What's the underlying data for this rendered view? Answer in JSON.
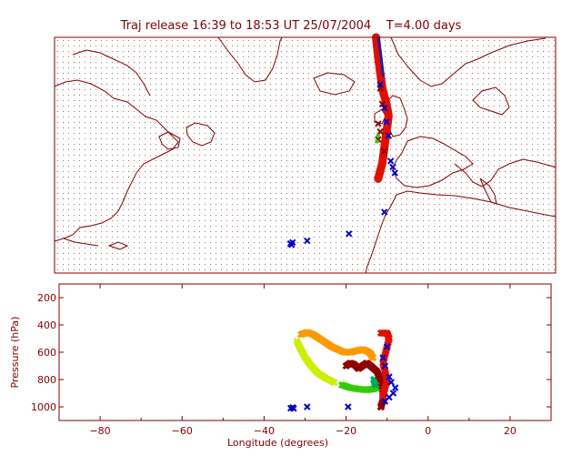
{
  "title": "Traj release 16:39 to 18:53 UT 25/07/2004    T=4.00 days",
  "colors": {
    "frame": "#800000",
    "coast": "#800000",
    "marker_blue": "#0000cc",
    "trajectory_red": "#e01000",
    "trajectory_dark": "#900000",
    "trajectory_orange": "#ff9900",
    "trajectory_yellow": "#ccee00",
    "trajectory_green": "#33cc00",
    "trajectory_teal": "#00aa55"
  },
  "chart_data": [
    {
      "type": "scatter",
      "name": "trajectory-map",
      "description_visible": "map of North Atlantic with trajectories",
      "xlim": [
        -90,
        30
      ],
      "ylim": [
        15,
        75
      ],
      "grid": "dotted",
      "blue_markers": [
        {
          "lon": -33.5,
          "lat": 22.5
        },
        {
          "lon": -33.0,
          "lat": 22.8
        },
        {
          "lon": -33.2,
          "lat": 22.2
        },
        {
          "lon": -29.5,
          "lat": 23.2
        },
        {
          "lon": -19.5,
          "lat": 25.0
        },
        {
          "lon": -11.0,
          "lat": 30.5
        },
        {
          "lon": -8.5,
          "lat": 40.5
        },
        {
          "lon": -9.0,
          "lat": 42.0
        },
        {
          "lon": -9.5,
          "lat": 43.5
        },
        {
          "lon": -10.0,
          "lat": 50.0
        },
        {
          "lon": -10.5,
          "lat": 53.5
        },
        {
          "lon": -11.0,
          "lat": 57.0
        },
        {
          "lon": -12.0,
          "lat": 63.0
        }
      ],
      "red_path": [
        {
          "lon": -13.0,
          "lat": 75.0
        },
        {
          "lon": -12.5,
          "lat": 70.0
        },
        {
          "lon": -12.0,
          "lat": 66.0
        },
        {
          "lon": -11.5,
          "lat": 62.0
        },
        {
          "lon": -10.5,
          "lat": 58.0
        },
        {
          "lon": -10.0,
          "lat": 55.0
        },
        {
          "lon": -10.5,
          "lat": 51.0
        },
        {
          "lon": -11.0,
          "lat": 47.0
        },
        {
          "lon": -11.5,
          "lat": 43.0
        },
        {
          "lon": -12.5,
          "lat": 39.0
        }
      ],
      "dark_markers": [
        {
          "lon": -12.0,
          "lat": 62.0
        },
        {
          "lon": -11.5,
          "lat": 58.0
        },
        {
          "lon": -12.5,
          "lat": 53.0
        },
        {
          "lon": -12.0,
          "lat": 51.0
        },
        {
          "lon": -12.5,
          "lat": 49.0
        },
        {
          "lon": -11.0,
          "lat": 46.0
        }
      ],
      "green_markers": [
        {
          "lon": -12.5,
          "lat": 50.0
        },
        {
          "lon": -12.8,
          "lat": 48.5
        }
      ]
    },
    {
      "type": "scatter",
      "name": "pressure-vs-longitude",
      "xlabel": "Longitude  (degrees)",
      "ylabel": "Pressure  (hPa)",
      "xlim": [
        -90,
        30
      ],
      "ylim": [
        1100,
        100
      ],
      "x_ticks": [
        -80,
        -60,
        -40,
        -20,
        0,
        20
      ],
      "y_ticks": [
        200,
        400,
        600,
        800,
        1000
      ],
      "series": [
        {
          "color": "#ff9900",
          "points": [
            {
              "lon": -31.0,
              "p": 470
            },
            {
              "lon": -29.5,
              "p": 455
            },
            {
              "lon": -28.0,
              "p": 470
            },
            {
              "lon": -26.5,
              "p": 500
            },
            {
              "lon": -25.0,
              "p": 530
            },
            {
              "lon": -23.5,
              "p": 560
            },
            {
              "lon": -22.0,
              "p": 580
            },
            {
              "lon": -20.5,
              "p": 600
            },
            {
              "lon": -19.0,
              "p": 600
            },
            {
              "lon": -17.5,
              "p": 590
            },
            {
              "lon": -16.0,
              "p": 580
            },
            {
              "lon": -15.0,
              "p": 590
            },
            {
              "lon": -14.0,
              "p": 610
            },
            {
              "lon": -13.5,
              "p": 640
            }
          ]
        },
        {
          "color": "#ccee00",
          "points": [
            {
              "lon": -32.0,
              "p": 520
            },
            {
              "lon": -31.0,
              "p": 580
            },
            {
              "lon": -30.0,
              "p": 640
            },
            {
              "lon": -28.5,
              "p": 700
            },
            {
              "lon": -27.0,
              "p": 750
            },
            {
              "lon": -25.0,
              "p": 790
            },
            {
              "lon": -23.0,
              "p": 820
            }
          ]
        },
        {
          "color": "#33cc00",
          "points": [
            {
              "lon": -21.0,
              "p": 840
            },
            {
              "lon": -19.0,
              "p": 860
            },
            {
              "lon": -17.0,
              "p": 870
            },
            {
              "lon": -15.0,
              "p": 875
            },
            {
              "lon": -13.5,
              "p": 870
            },
            {
              "lon": -12.5,
              "p": 860
            }
          ]
        },
        {
          "color": "#00aa55",
          "points": [
            {
              "lon": -13.0,
              "p": 820
            },
            {
              "lon": -12.8,
              "p": 840
            },
            {
              "lon": -13.2,
              "p": 800
            }
          ]
        },
        {
          "color": "#900000",
          "points": [
            {
              "lon": -20.0,
              "p": 700
            },
            {
              "lon": -19.0,
              "p": 680
            },
            {
              "lon": -18.0,
              "p": 690
            },
            {
              "lon": -17.0,
              "p": 720
            },
            {
              "lon": -16.0,
              "p": 700
            },
            {
              "lon": -15.0,
              "p": 680
            },
            {
              "lon": -14.0,
              "p": 700
            },
            {
              "lon": -12.5,
              "p": 740
            },
            {
              "lon": -11.5,
              "p": 800
            },
            {
              "lon": -11.0,
              "p": 900
            },
            {
              "lon": -11.0,
              "p": 950
            },
            {
              "lon": -11.5,
              "p": 1000
            }
          ]
        },
        {
          "color": "#e01000",
          "points": [
            {
              "lon": -11.5,
              "p": 460
            },
            {
              "lon": -10.0,
              "p": 460
            },
            {
              "lon": -9.5,
              "p": 500
            },
            {
              "lon": -10.0,
              "p": 560
            },
            {
              "lon": -10.5,
              "p": 620
            },
            {
              "lon": -11.0,
              "p": 680
            },
            {
              "lon": -10.5,
              "p": 740
            },
            {
              "lon": -10.0,
              "p": 800
            },
            {
              "lon": -10.5,
              "p": 860
            },
            {
              "lon": -11.0,
              "p": 920
            }
          ]
        },
        {
          "color": "#0000cc",
          "marker": "x",
          "points": [
            {
              "lon": -33.5,
              "p": 1010
            },
            {
              "lon": -33.0,
              "p": 1005
            },
            {
              "lon": -32.8,
              "p": 1012
            },
            {
              "lon": -29.5,
              "p": 1000
            },
            {
              "lon": -19.5,
              "p": 1000
            },
            {
              "lon": -10.5,
              "p": 960
            },
            {
              "lon": -9.5,
              "p": 930
            },
            {
              "lon": -8.5,
              "p": 900
            },
            {
              "lon": -8.0,
              "p": 860
            },
            {
              "lon": -9.0,
              "p": 820
            },
            {
              "lon": -9.5,
              "p": 780
            },
            {
              "lon": -10.5,
              "p": 700
            },
            {
              "lon": -11.0,
              "p": 640
            },
            {
              "lon": -10.0,
              "p": 560
            }
          ]
        }
      ]
    }
  ]
}
